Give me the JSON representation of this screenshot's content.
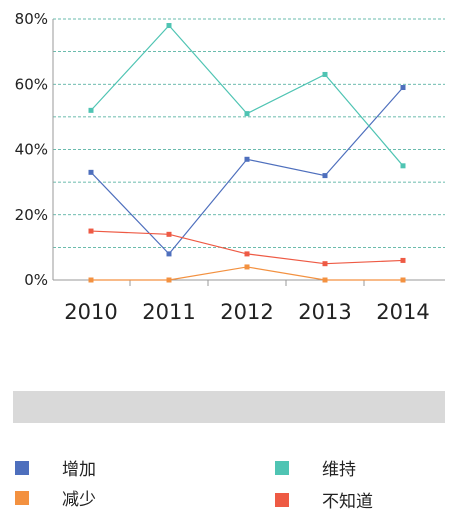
{
  "chart_data": {
    "type": "line",
    "categories": [
      "2010",
      "2011",
      "2012",
      "2013",
      "2014"
    ],
    "y_ticks": [
      "0%",
      "20%",
      "40%",
      "60%",
      "80%"
    ],
    "ylim": [
      0,
      80
    ],
    "grid": true,
    "legend_position": "bottom",
    "series": [
      {
        "name": "增加",
        "color": "#4e6fbd",
        "values": [
          33,
          8,
          37,
          32,
          59
        ]
      },
      {
        "name": "维持",
        "color": "#4fc4b3",
        "values": [
          52,
          78,
          51,
          63,
          35
        ]
      },
      {
        "name": "减少",
        "color": "#f39140",
        "values": [
          0,
          0,
          4,
          0,
          0
        ]
      },
      {
        "name": "不知道",
        "color": "#ee5a44",
        "values": [
          15,
          14,
          8,
          5,
          6
        ]
      }
    ]
  }
}
